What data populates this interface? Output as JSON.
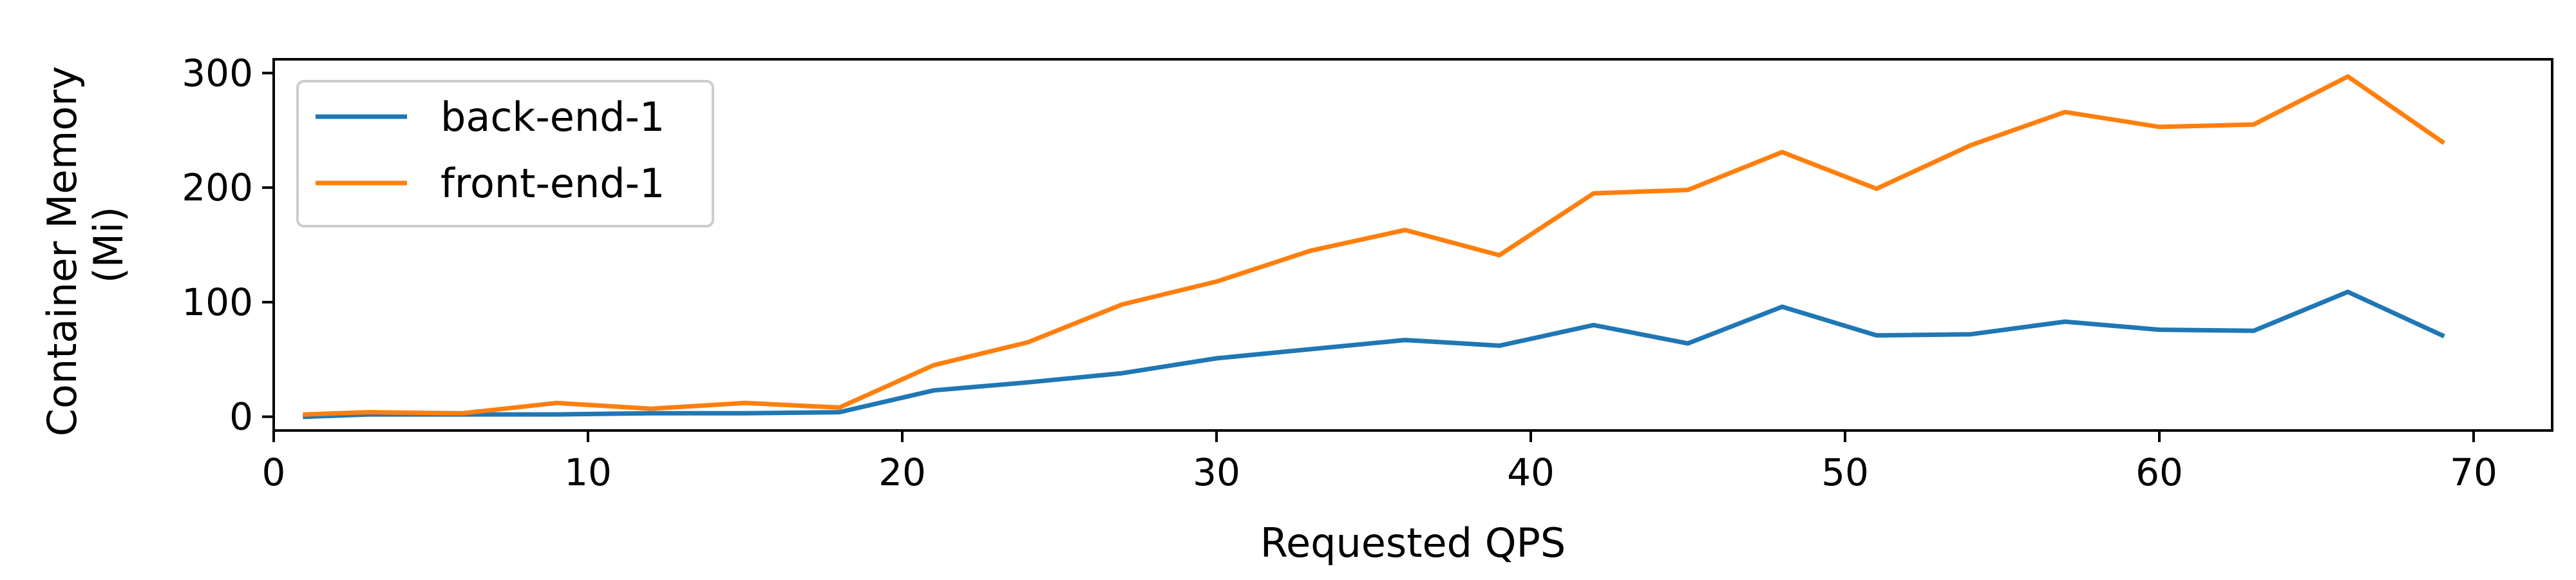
{
  "chart_data": {
    "type": "line",
    "xlabel": "Requested QPS",
    "ylabel": [
      "Container Memory",
      "(Mi)"
    ],
    "xlim": [
      0,
      72.5
    ],
    "ylim": [
      -12,
      312
    ],
    "xticks": [
      0,
      10,
      20,
      30,
      40,
      50,
      60,
      70
    ],
    "yticks": [
      0,
      100,
      200,
      300
    ],
    "grid": false,
    "legend_position": "top-left",
    "series": [
      {
        "name": "back-end-1",
        "color": "#1f77b4",
        "x": [
          1,
          3,
          6,
          9,
          12,
          15,
          18,
          21,
          24,
          27,
          30,
          33,
          36,
          39,
          42,
          45,
          48,
          51,
          54,
          57,
          60,
          63,
          66,
          69
        ],
        "values": [
          0,
          2,
          2,
          2,
          3,
          3,
          4,
          23,
          30,
          38,
          51,
          59,
          67,
          62,
          80,
          64,
          96,
          71,
          72,
          83,
          76,
          75,
          109,
          71
        ]
      },
      {
        "name": "front-end-1",
        "color": "#ff7f0e",
        "x": [
          1,
          3,
          6,
          9,
          12,
          15,
          18,
          21,
          24,
          27,
          30,
          33,
          36,
          39,
          42,
          45,
          48,
          51,
          54,
          57,
          60,
          63,
          66,
          69
        ],
        "values": [
          2,
          4,
          3,
          12,
          7,
          12,
          8,
          45,
          65,
          98,
          118,
          145,
          163,
          141,
          195,
          198,
          231,
          199,
          237,
          266,
          253,
          255,
          297,
          240
        ]
      }
    ]
  }
}
